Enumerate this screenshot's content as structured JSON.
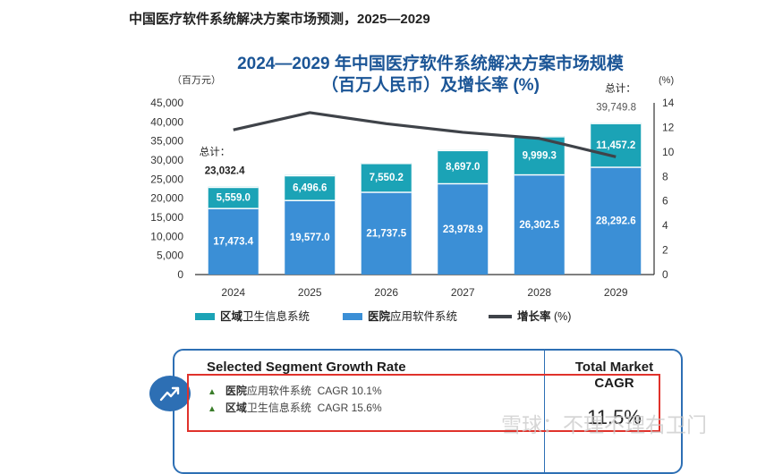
{
  "heading": "中国医疗软件系统解决方案市场预测，2025—2029",
  "chart_data": {
    "type": "bar",
    "stacked": true,
    "title_line1": "2024—2029 年中国医疗软件系统解决方案市场规模",
    "title_line2": "（百万人民币）及增长率 (%)",
    "left_unit": "（百万元）",
    "right_unit": "(%)",
    "categories": [
      "2024",
      "2025",
      "2026",
      "2027",
      "2028",
      "2029"
    ],
    "series": [
      {
        "name": "医院应用软件系统",
        "name_bold": "医院",
        "name_rest": "应用软件系统",
        "kind": "bar",
        "color": "#3b8fd6",
        "values": [
          17473.4,
          19577.0,
          21737.5,
          23978.9,
          26302.5,
          28292.6
        ],
        "labels": [
          "17,473.4",
          "19,577.0",
          "21,737.5",
          "23,978.9",
          "26,302.5",
          "28,292.6"
        ]
      },
      {
        "name": "区域卫生信息系统",
        "name_bold": "区域",
        "name_rest": "卫生信息系统",
        "kind": "bar",
        "color": "#1ba3b6",
        "values": [
          5559.0,
          6496.6,
          7550.2,
          8697.0,
          9999.3,
          11457.2
        ],
        "labels": [
          "5,559.0",
          "6,496.6",
          "7,550.2",
          "8,697.0",
          "9,999.3",
          "11,457.2"
        ]
      },
      {
        "name": "增长率 (%)",
        "name_bold": "增长率",
        "name_rest": " (%)",
        "kind": "line",
        "color": "#3f4349",
        "values": [
          11.8,
          13.2,
          12.3,
          11.6,
          11.1,
          9.6
        ]
      }
    ],
    "totals": [
      {
        "label": "总计：",
        "value": "23,032.4",
        "category_index": 0
      },
      {
        "label": "总计：",
        "value": "39,749.8",
        "category_index": 5
      }
    ],
    "ylim": [
      0,
      45000
    ],
    "yticks": [
      0,
      5000,
      10000,
      15000,
      20000,
      25000,
      30000,
      35000,
      40000,
      45000
    ],
    "ytick_labels": [
      "0",
      "5,000",
      "10,000",
      "15,000",
      "20,000",
      "25,000",
      "30,000",
      "35,000",
      "40,000",
      "45,000"
    ],
    "y2lim": [
      0,
      14
    ],
    "y2ticks": [
      0,
      2,
      4,
      6,
      8,
      10,
      12,
      14
    ],
    "legend_order": [
      1,
      0,
      2
    ],
    "legend_position": "bottom"
  },
  "segment_card": {
    "title": "Selected Segment Growth Rate",
    "market_title_line1": "Total Market",
    "market_title_line2": "CAGR",
    "rows": [
      {
        "strong": "医院",
        "rest": "应用软件系统",
        "cagr": "CAGR 10.1%"
      },
      {
        "strong": "区域",
        "rest": "卫生信息系统",
        "cagr": "CAGR 15.6%"
      }
    ],
    "cagr_value": "11.5%",
    "arrow_glyph": "▲"
  },
  "watermark": "雪球：不理不理右卫门"
}
